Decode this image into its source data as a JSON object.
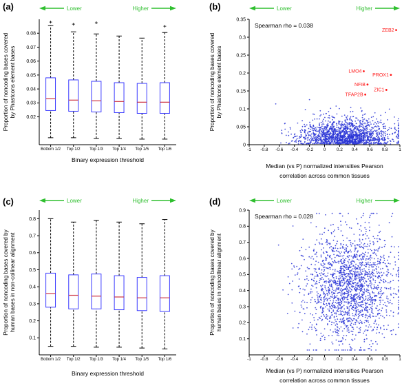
{
  "colors": {
    "background": "#ffffff",
    "axis": "#000000",
    "text": "#000000",
    "box_stroke": "#3a3aff",
    "median": "#cc3344",
    "whisker": "#000000",
    "scatter_point": "#2a35d6",
    "gene_label": "#ff1a1a",
    "arrow": "#2fbf2f"
  },
  "panels": [
    {
      "label": "(a)",
      "arrow_lower": "Lower",
      "arrow_higher": "Higher"
    },
    {
      "label": "(b)",
      "arrow_lower": "Lower",
      "arrow_higher": "Higher"
    },
    {
      "label": "(c)",
      "arrow_lower": "Lower",
      "arrow_higher": "Higher"
    },
    {
      "label": "(d)",
      "arrow_lower": "Lower",
      "arrow_higher": "Higher"
    }
  ],
  "chart_data": [
    {
      "type": "box",
      "panel": "a",
      "xlabel_lines": [
        "Binary expression threshold"
      ],
      "ylabel_lines": [
        "Proportion of noncoding bases covered",
        "by Phastcons element bases"
      ],
      "categories": [
        "Bottom 1/2",
        "Top 1/2",
        "Top 1/3",
        "Top 1/4",
        "Top 1/5",
        "Top 1/6"
      ],
      "ylim": [
        0,
        0.09
      ],
      "yticks": [
        0.02,
        0.03,
        0.04,
        0.05,
        0.06,
        0.07,
        0.08
      ],
      "boxes": [
        {
          "whislo": 0.005,
          "q1": 0.0245,
          "med": 0.033,
          "q3": 0.048,
          "whishi": 0.0855,
          "outliers": [
            0.088
          ]
        },
        {
          "whislo": 0.005,
          "q1": 0.024,
          "med": 0.032,
          "q3": 0.0465,
          "whishi": 0.081,
          "outliers": [
            0.0865
          ]
        },
        {
          "whislo": 0.0045,
          "q1": 0.0235,
          "med": 0.0315,
          "q3": 0.0455,
          "whishi": 0.0795,
          "outliers": [
            0.0875
          ]
        },
        {
          "whislo": 0.0045,
          "q1": 0.023,
          "med": 0.031,
          "q3": 0.0445,
          "whishi": 0.078,
          "outliers": []
        },
        {
          "whislo": 0.004,
          "q1": 0.0225,
          "med": 0.0305,
          "q3": 0.044,
          "whishi": 0.0765,
          "outliers": []
        },
        {
          "whislo": 0.004,
          "q1": 0.0225,
          "med": 0.0305,
          "q3": 0.0445,
          "whishi": 0.0805,
          "outliers": [
            0.085
          ]
        }
      ]
    },
    {
      "type": "scatter",
      "panel": "b",
      "annotation": "Spearman rho = 0.038",
      "xlabel_lines": [
        "Median (vs P) normalized intensities Pearson",
        "correlation across common tissues"
      ],
      "ylabel_lines": [
        "Proportion of noncoding bases covered",
        "by Phastcons element bases"
      ],
      "xlim": [
        -1,
        1
      ],
      "xticks": [
        -1,
        -0.8,
        -0.6,
        -0.4,
        -0.2,
        0,
        0.2,
        0.4,
        0.6,
        0.8,
        1
      ],
      "ylim": [
        0,
        0.35
      ],
      "yticks": [
        0,
        0.05,
        0.1,
        0.15,
        0.2,
        0.25,
        0.3,
        0.35
      ],
      "cloud": {
        "seed": 11,
        "n": 1700,
        "x_mean": 0.28,
        "x_sd": 0.3,
        "x_min": -0.92,
        "x_max": 0.98,
        "y_abs_scale": 0.033,
        "y_min": 0.002,
        "y_max": 0.3
      },
      "labeled_points": [
        {
          "label": "ZEB2",
          "x": 0.95,
          "y": 0.32
        },
        {
          "label": "LMO4",
          "x": 0.52,
          "y": 0.205
        },
        {
          "label": "PROX1",
          "x": 0.88,
          "y": 0.195
        },
        {
          "label": "NFIB",
          "x": 0.57,
          "y": 0.168
        },
        {
          "label": "ZIC1",
          "x": 0.82,
          "y": 0.153
        },
        {
          "label": "TFAP2B",
          "x": 0.54,
          "y": 0.14
        }
      ]
    },
    {
      "type": "box",
      "panel": "c",
      "xlabel_lines": [
        "Binary expression threshold"
      ],
      "ylabel_lines": [
        "Proportion of noncoding bases covered by",
        "human bases in non-collinear alignment"
      ],
      "categories": [
        "Bottom 1/2",
        "Top 1/2",
        "Top 1/3",
        "Top 1/4",
        "Top 1/5",
        "Top 1/6"
      ],
      "ylim": [
        0,
        0.85
      ],
      "yticks": [
        0.1,
        0.2,
        0.3,
        0.4,
        0.5,
        0.6,
        0.7,
        0.8
      ],
      "boxes": [
        {
          "whislo": 0.05,
          "q1": 0.28,
          "med": 0.36,
          "q3": 0.48,
          "whishi": 0.8,
          "outliers": []
        },
        {
          "whislo": 0.05,
          "q1": 0.27,
          "med": 0.35,
          "q3": 0.47,
          "whishi": 0.78,
          "outliers": []
        },
        {
          "whislo": 0.045,
          "q1": 0.27,
          "med": 0.345,
          "q3": 0.475,
          "whishi": 0.79,
          "outliers": []
        },
        {
          "whislo": 0.045,
          "q1": 0.265,
          "med": 0.34,
          "q3": 0.465,
          "whishi": 0.78,
          "outliers": []
        },
        {
          "whislo": 0.04,
          "q1": 0.26,
          "med": 0.335,
          "q3": 0.455,
          "whishi": 0.77,
          "outliers": []
        },
        {
          "whislo": 0.035,
          "q1": 0.255,
          "med": 0.335,
          "q3": 0.465,
          "whishi": 0.795,
          "outliers": []
        }
      ]
    },
    {
      "type": "scatter",
      "panel": "d",
      "annotation": "Spearman rho = 0.028",
      "xlabel_lines": [
        "Median (vs P) normalized intensities Pearson",
        "correlation across common tissues"
      ],
      "ylabel_lines": [
        "Proportion of noncoding bases covered by",
        "human bases in noncollinear alignment"
      ],
      "xlim": [
        -1,
        1
      ],
      "xticks": [
        -1,
        -0.8,
        -0.6,
        -0.4,
        -0.2,
        0,
        0.2,
        0.4,
        0.6,
        0.8,
        1
      ],
      "ylim": [
        0,
        0.9
      ],
      "yticks": [
        0.1,
        0.2,
        0.3,
        0.4,
        0.5,
        0.6,
        0.7,
        0.8,
        0.9
      ],
      "cloud": {
        "seed": 23,
        "n": 1900,
        "x_mean": 0.33,
        "x_sd": 0.3,
        "x_min": -0.93,
        "x_max": 0.98,
        "y_mean": 0.42,
        "y_sd": 0.17,
        "y_min": 0.03,
        "y_max": 0.88
      },
      "labeled_points": []
    }
  ]
}
